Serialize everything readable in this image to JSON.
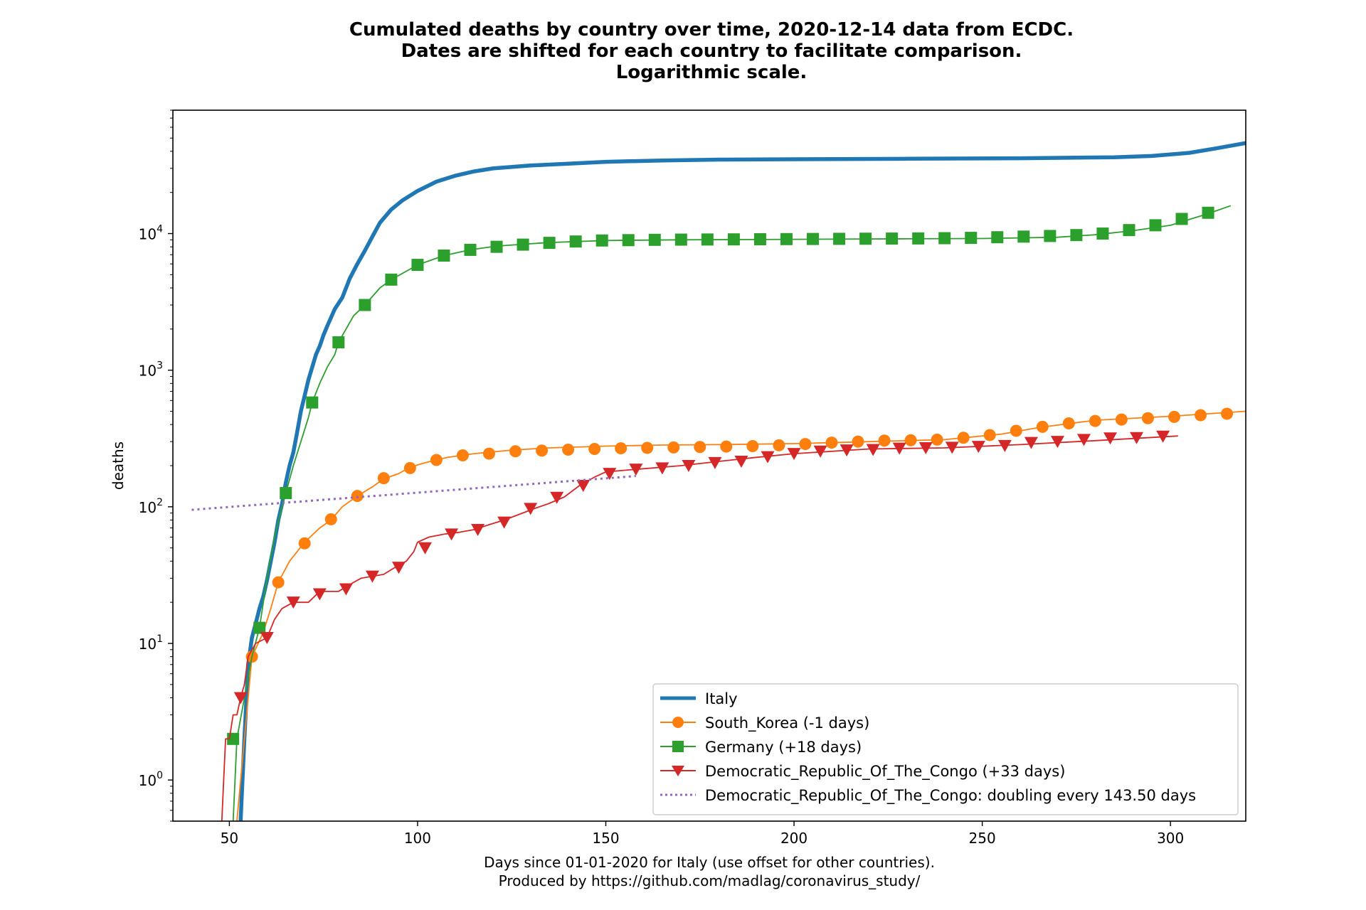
{
  "chart_data": {
    "type": "line",
    "title": [
      "Cumulated deaths by country over time, 2020-12-14 data from ECDC.",
      "Dates are shifted for each country to facilitate comparison.",
      "Logarithmic scale."
    ],
    "xlabel": [
      "Days since 01-01-2020 for Italy (use offset for other countries).",
      "Produced by https://github.com/madlag/coronavirus_study/"
    ],
    "ylabel": "deaths",
    "xlim": [
      35,
      320
    ],
    "ylim": [
      0.5,
      80000
    ],
    "yscale": "log",
    "xticks": [
      50,
      100,
      150,
      200,
      250,
      300
    ],
    "yticks": [
      1,
      10,
      100,
      1000,
      10000
    ],
    "ytick_labels": [
      "10",
      "10",
      "10",
      "10",
      "10"
    ],
    "ytick_exponents": [
      "0",
      "1",
      "2",
      "3",
      "4"
    ],
    "legend_position": "lower right",
    "series": [
      {
        "name": "Italy",
        "color": "#1f77b4",
        "style": "thick-line",
        "x": [
          53,
          54,
          55,
          56,
          57,
          58,
          59,
          60,
          61,
          62,
          63,
          64,
          65,
          66,
          67,
          68,
          69,
          70,
          71,
          72,
          73,
          74,
          75,
          76,
          78,
          80,
          82,
          84,
          86,
          88,
          90,
          93,
          96,
          100,
          105,
          110,
          115,
          120,
          130,
          140,
          150,
          165,
          180,
          200,
          230,
          260,
          285,
          295,
          305,
          312,
          320
        ],
        "y": [
          0.5,
          2,
          7,
          11,
          14,
          18,
          22,
          29,
          40,
          55,
          80,
          105,
          150,
          200,
          250,
          350,
          500,
          650,
          850,
          1050,
          1300,
          1500,
          1800,
          2100,
          2800,
          3400,
          4700,
          6000,
          7500,
          9500,
          12000,
          15000,
          17500,
          20500,
          24000,
          26500,
          28500,
          30000,
          31500,
          32500,
          33500,
          34300,
          34800,
          35000,
          35300,
          35600,
          36200,
          37000,
          39000,
          42000,
          46000
        ]
      },
      {
        "name": "South_Korea (-1 days)",
        "color": "#ff7f0e",
        "style": "line-circle",
        "x": [
          52,
          54,
          56,
          59,
          61,
          63,
          66,
          70,
          74,
          77,
          80,
          84,
          88,
          91,
          95,
          98,
          102,
          108,
          115,
          125,
          135,
          150,
          165,
          180,
          200,
          220,
          240,
          255,
          265,
          280,
          300,
          320
        ],
        "y": [
          0.5,
          2,
          8,
          12,
          18,
          28,
          40,
          55,
          70,
          80,
          100,
          120,
          140,
          160,
          175,
          195,
          210,
          230,
          245,
          260,
          270,
          278,
          283,
          285,
          290,
          300,
          310,
          340,
          380,
          430,
          460,
          500
        ],
        "marker_x": [
          56,
          63,
          70,
          77,
          84,
          91,
          98,
          105,
          112,
          119,
          126,
          133,
          140,
          147,
          154,
          161,
          168,
          175,
          182,
          189,
          196,
          203,
          210,
          217,
          224,
          231,
          238,
          245,
          252,
          259,
          266,
          273,
          280,
          287,
          294,
          301,
          308,
          315
        ],
        "marker_y": [
          8,
          28,
          54,
          81,
          120,
          162,
          192,
          220,
          238,
          245,
          255,
          258,
          262,
          265,
          268,
          270,
          272,
          274,
          276,
          278,
          282,
          288,
          295,
          300,
          305,
          307,
          310,
          320,
          335,
          360,
          385,
          408,
          425,
          435,
          445,
          455,
          468,
          480
        ]
      },
      {
        "name": "Germany (+18 days)",
        "color": "#2ca02c",
        "style": "line-square",
        "x": [
          51,
          52,
          54,
          56,
          58,
          60,
          62,
          64,
          65,
          67,
          69,
          71,
          72,
          74,
          76,
          78,
          79,
          81,
          83,
          86,
          90,
          93,
          97,
          100,
          107,
          114,
          121,
          135,
          150,
          170,
          190,
          210,
          230,
          250,
          270,
          280,
          290,
          300,
          310,
          316
        ],
        "y": [
          0.5,
          2,
          4,
          8,
          13,
          30,
          60,
          100,
          126,
          200,
          300,
          450,
          580,
          800,
          1050,
          1300,
          1600,
          2000,
          2500,
          3000,
          4000,
          4600,
          5300,
          5900,
          6900,
          7600,
          8100,
          8600,
          8900,
          9000,
          9050,
          9100,
          9150,
          9200,
          9400,
          9800,
          10500,
          11500,
          14000,
          16000
        ],
        "marker_x": [
          51,
          58,
          65,
          72,
          79,
          86,
          93,
          100,
          107,
          114,
          121,
          128,
          135,
          142,
          149,
          156,
          163,
          170,
          177,
          184,
          191,
          198,
          205,
          212,
          219,
          226,
          233,
          240,
          247,
          254,
          261,
          268,
          275,
          282,
          289,
          296,
          303,
          310
        ],
        "marker_y": [
          2,
          13,
          126,
          580,
          1600,
          3000,
          4600,
          5900,
          6900,
          7600,
          8000,
          8300,
          8550,
          8750,
          8900,
          8950,
          9000,
          9030,
          9050,
          9070,
          9090,
          9110,
          9130,
          9150,
          9170,
          9190,
          9210,
          9250,
          9300,
          9400,
          9500,
          9600,
          9750,
          10000,
          10600,
          11500,
          12800,
          14200
        ]
      },
      {
        "name": "Democratic_Republic_Of_The_Congo (+33 days)",
        "color": "#d62728",
        "style": "line-triangle",
        "x": [
          48,
          48.5,
          49,
          50,
          51,
          52,
          53,
          54,
          55,
          57,
          60,
          62,
          64,
          67,
          71,
          74,
          79,
          82,
          85,
          88,
          91,
          94,
          97,
          99,
          100,
          103,
          107,
          111,
          115,
          119,
          123,
          127,
          131,
          135,
          139,
          143,
          147,
          150,
          155,
          160,
          170,
          180,
          190,
          200,
          220,
          240,
          260,
          280,
          302
        ],
        "y": [
          0.5,
          1,
          2,
          2,
          3,
          3,
          4,
          5,
          8,
          10,
          11,
          15,
          18,
          20,
          20,
          24,
          24,
          27,
          30,
          31,
          32,
          36,
          40,
          47,
          55,
          60,
          63,
          65,
          68,
          74,
          80,
          88,
          97,
          106,
          118,
          143,
          165,
          180,
          185,
          190,
          200,
          215,
          230,
          245,
          265,
          270,
          285,
          305,
          330
        ],
        "marker_x": [
          53,
          60,
          67,
          74,
          81,
          88,
          95,
          102,
          109,
          116,
          123,
          130,
          137,
          144,
          151,
          158,
          165,
          172,
          179,
          186,
          193,
          200,
          207,
          214,
          221,
          228,
          235,
          242,
          249,
          256,
          263,
          270,
          277,
          284,
          291,
          298
        ],
        "marker_y": [
          4,
          11,
          20,
          23,
          25,
          31,
          36,
          50,
          63,
          68,
          77,
          97,
          117,
          143,
          175,
          188,
          192,
          200,
          210,
          215,
          232,
          245,
          255,
          260,
          262,
          268,
          270,
          272,
          276,
          280,
          295,
          300,
          310,
          318,
          320,
          328
        ]
      },
      {
        "name": "Democratic_Republic_Of_The_Congo: doubling every 143.50 days",
        "color": "#9467bd",
        "style": "dotted",
        "x": [
          40,
          158
        ],
        "y": [
          95,
          168
        ]
      }
    ]
  }
}
